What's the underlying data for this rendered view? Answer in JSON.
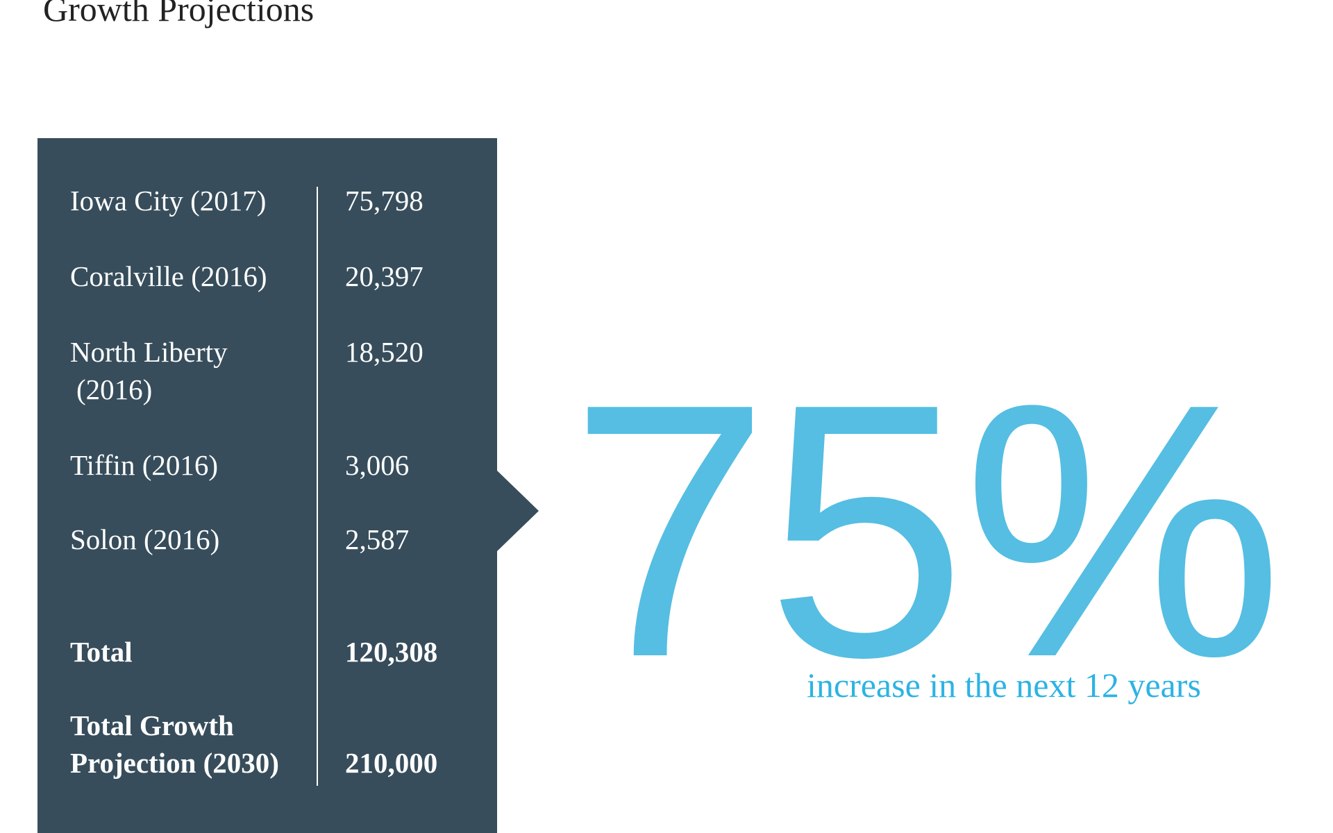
{
  "title": "Growth Projections",
  "table": {
    "rows": [
      {
        "name": "Iowa City (2017)",
        "value": "75,798"
      },
      {
        "name": "Coralville (2016)",
        "value": "20,397"
      },
      {
        "name_line1": "North Liberty",
        "name_line2": "(2016)",
        "value": "18,520"
      },
      {
        "name": "Tiffin (2016)",
        "value": "3,006"
      },
      {
        "name": "Solon (2016)",
        "value": "2,587"
      }
    ],
    "total": {
      "label": "Total",
      "value": "120,308"
    },
    "projection": {
      "label_line1": "Total Growth",
      "label_line2": "Projection (2030)",
      "value": "210,000"
    }
  },
  "stat": {
    "value": "75%",
    "caption": "increase in the next 12 years"
  },
  "colors": {
    "panel": "#374d5b",
    "accent": "#55bee2",
    "caption": "#2db3e4"
  }
}
